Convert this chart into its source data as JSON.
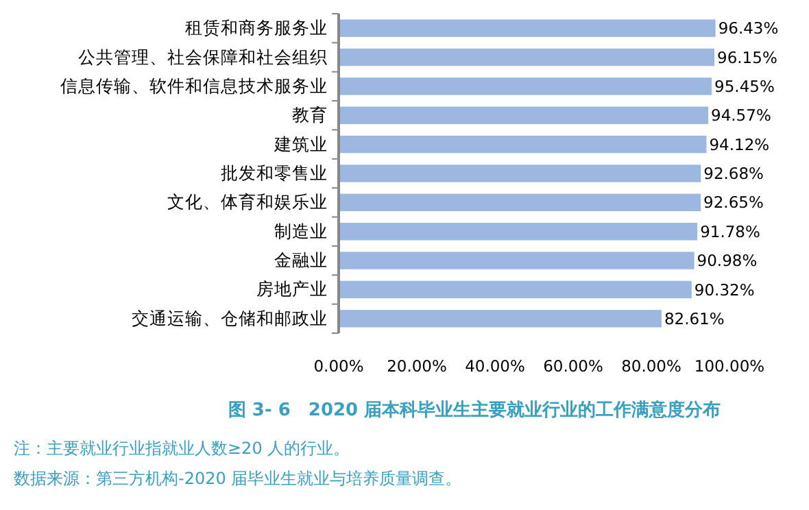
{
  "chart_data": {
    "type": "bar",
    "orientation": "horizontal",
    "title": "图 3- 6　2020 届本科毕业生主要就业行业的工作满意度分布",
    "categories": [
      "租赁和商务服务业",
      "公共管理、社会保障和社会组织",
      "信息传输、软件和信息技术服务业",
      "教育",
      "建筑业",
      "批发和零售业",
      "文化、体育和娱乐业",
      "制造业",
      "金融业",
      "房地产业",
      "交通运输、仓储和邮政业"
    ],
    "values": [
      96.43,
      96.15,
      95.45,
      94.57,
      94.12,
      92.68,
      92.65,
      91.78,
      90.98,
      90.32,
      82.61
    ],
    "value_labels": [
      "96.43%",
      "96.15%",
      "95.45%",
      "94.57%",
      "94.12%",
      "92.68%",
      "92.65%",
      "91.78%",
      "90.98%",
      "90.32%",
      "82.61%"
    ],
    "color": "#9db8e0",
    "xlim": [
      0,
      100
    ],
    "xticks": [
      {
        "value": 0,
        "label": "0.00%"
      },
      {
        "value": 20,
        "label": "20.00%"
      },
      {
        "value": 40,
        "label": "40.00%"
      },
      {
        "value": 60,
        "label": "60.00%"
      },
      {
        "value": 80,
        "label": "80.00%"
      },
      {
        "value": 100,
        "label": "100.00%"
      }
    ],
    "annotations": [
      "注：主要就业行业指就业人数≥20 人的行业。",
      "数据来源：第三方机构-2020 届毕业生就业与培养质量调查。"
    ]
  }
}
